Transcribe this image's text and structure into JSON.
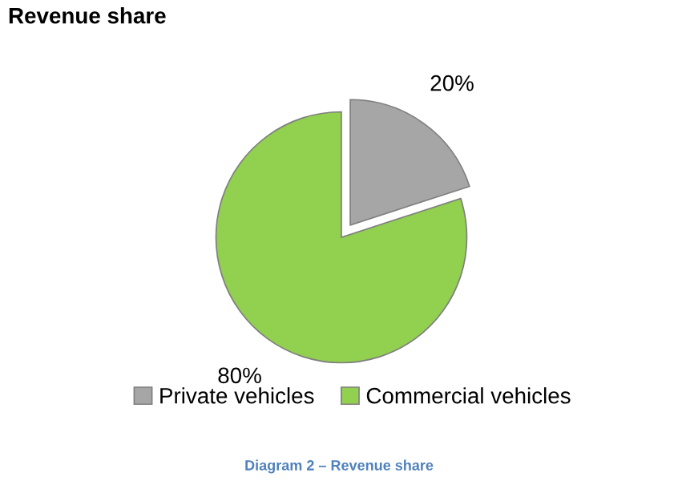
{
  "chart_data": {
    "type": "pie",
    "title": "Revenue share",
    "categories": [
      "Private vehicles",
      "Commercial vehicles"
    ],
    "values": [
      20,
      80
    ],
    "colors": [
      "#a6a6a6",
      "#92d050"
    ],
    "value_labels": [
      "20%",
      "80%"
    ],
    "legend": "bottom",
    "annotations": [
      "Diagram 2 – Revenue share"
    ]
  }
}
